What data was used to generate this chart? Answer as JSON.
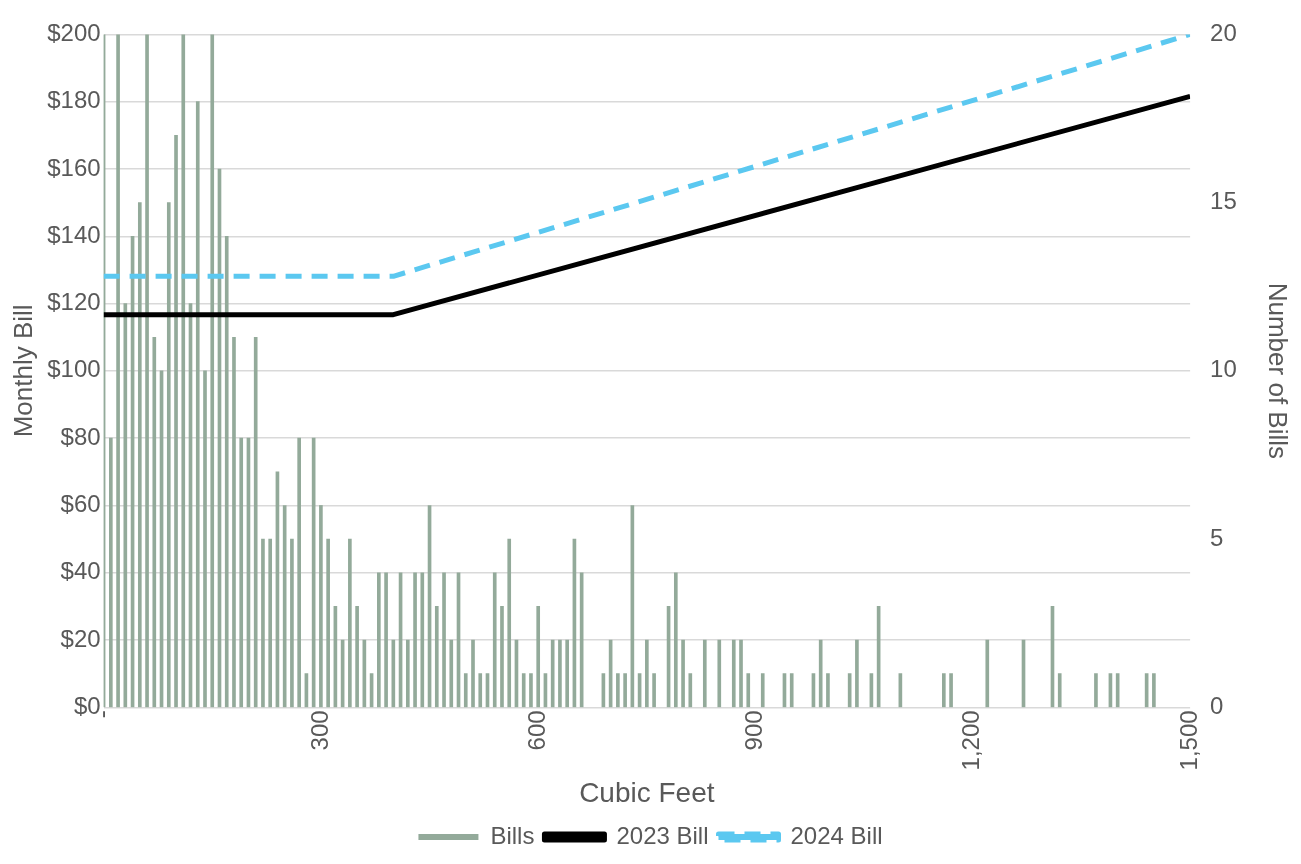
{
  "chart_data": {
    "type": "bar",
    "xlabel": "Cubic Feet",
    "ylabel": "Monthly Bill",
    "y2label": "Number of Bills",
    "xlim": [
      0,
      1500
    ],
    "xticks": [
      {
        "value": 0,
        "label": "-"
      },
      300,
      600,
      900,
      {
        "value": 1200,
        "label": "1,200"
      },
      {
        "value": 1500,
        "label": "1,500"
      }
    ],
    "ylim": [
      0,
      200
    ],
    "yticks": [
      {
        "value": 0,
        "label": "$0"
      },
      {
        "value": 20,
        "label": "$20"
      },
      {
        "value": 40,
        "label": "$40"
      },
      {
        "value": 60,
        "label": "$60"
      },
      {
        "value": 80,
        "label": "$80"
      },
      {
        "value": 100,
        "label": "$100"
      },
      {
        "value": 120,
        "label": "$120"
      },
      {
        "value": 140,
        "label": "$140"
      },
      {
        "value": 160,
        "label": "$160"
      },
      {
        "value": 180,
        "label": "$180"
      },
      {
        "value": 200,
        "label": "$200"
      }
    ],
    "y2lim": [
      0,
      20
    ],
    "y2ticks": [
      0,
      5,
      10,
      15,
      20
    ],
    "grid": "y",
    "legend": "bottom",
    "series": [
      {
        "name": "Bills",
        "axis": "y2",
        "color": "#93aa9a",
        "x": [
          0,
          10,
          20,
          30,
          40,
          50,
          60,
          70,
          80,
          90,
          100,
          110,
          120,
          130,
          140,
          150,
          160,
          170,
          180,
          190,
          200,
          210,
          220,
          230,
          240,
          250,
          260,
          270,
          280,
          290,
          300,
          310,
          320,
          330,
          340,
          350,
          360,
          370,
          380,
          390,
          400,
          410,
          420,
          430,
          440,
          450,
          460,
          470,
          480,
          490,
          500,
          510,
          520,
          530,
          540,
          550,
          560,
          570,
          580,
          590,
          600,
          610,
          620,
          630,
          640,
          650,
          660,
          690,
          700,
          710,
          720,
          730,
          740,
          750,
          760,
          780,
          790,
          800,
          810,
          830,
          850,
          870,
          880,
          890,
          910,
          940,
          950,
          980,
          990,
          1000,
          1030,
          1040,
          1060,
          1070,
          1100,
          1160,
          1170,
          1220,
          1270,
          1310,
          1320,
          1370,
          1390,
          1400,
          1440,
          1450
        ],
        "values": [
          20,
          8,
          20,
          12,
          14,
          15,
          20,
          11,
          10,
          15,
          17,
          20,
          12,
          18,
          10,
          20,
          16,
          14,
          11,
          8,
          8,
          11,
          5,
          5,
          7,
          6,
          5,
          8,
          1,
          8,
          6,
          5,
          3,
          2,
          5,
          3,
          2,
          1,
          4,
          4,
          2,
          4,
          2,
          4,
          4,
          6,
          3,
          4,
          2,
          4,
          1,
          2,
          1,
          1,
          4,
          3,
          5,
          2,
          1,
          1,
          3,
          1,
          2,
          2,
          2,
          5,
          4,
          1,
          2,
          1,
          1,
          6,
          1,
          2,
          1,
          3,
          4,
          2,
          1,
          2,
          2,
          2,
          2,
          1,
          1,
          1,
          1,
          1,
          2,
          1,
          1,
          2,
          1,
          3,
          1,
          1,
          1,
          2,
          2,
          3,
          1,
          1,
          1,
          1,
          1,
          1
        ]
      },
      {
        "name": "2023 Bill",
        "type": "line",
        "axis": "y",
        "color": "#000000",
        "line_style": "solid",
        "x": [
          0,
          400,
          1500
        ],
        "values": [
          116.7,
          116.7,
          181.6
        ]
      },
      {
        "name": "2024 Bill",
        "type": "line",
        "axis": "y",
        "color": "#5bc8f0",
        "line_style": "dashed",
        "x": [
          0,
          400,
          1500
        ],
        "values": [
          128.1,
          128.1,
          200
        ]
      }
    ]
  }
}
